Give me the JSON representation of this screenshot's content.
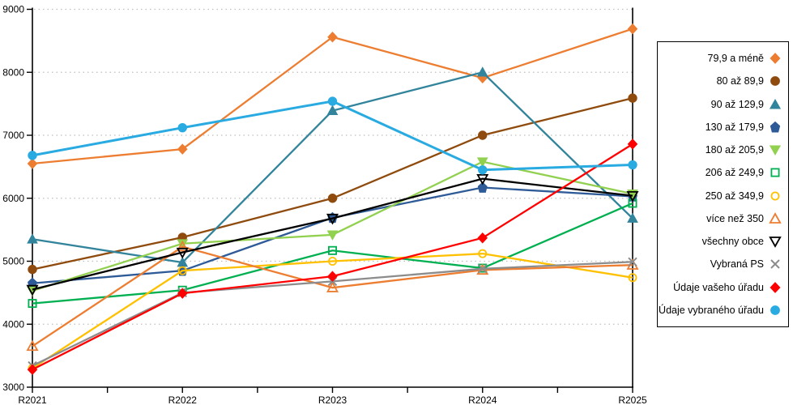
{
  "chart_data": {
    "type": "line",
    "title": "",
    "xlabel": "",
    "ylabel": "",
    "categories": [
      "R2021",
      "R2022",
      "R2023",
      "R2024",
      "R2025"
    ],
    "ylim": [
      3000,
      9000
    ],
    "y_ticks": [
      3000,
      4000,
      5000,
      6000,
      7000,
      8000,
      9000
    ],
    "grid": "horizontal-dashed",
    "legend_position": "right",
    "series": [
      {
        "name": "79,9 a méně",
        "marker": "diamond",
        "fill": "solid",
        "color": "#ED7D31",
        "values": [
          6550,
          6780,
          8560,
          7910,
          8690
        ]
      },
      {
        "name": "80 až 89,9",
        "marker": "circle",
        "fill": "solid",
        "color": "#8F4B0E",
        "values": [
          4870,
          5380,
          6000,
          7000,
          7590
        ]
      },
      {
        "name": "90 až 129,9",
        "marker": "triangle-up",
        "fill": "solid",
        "color": "#31849B",
        "values": [
          5350,
          4980,
          7390,
          8000,
          5680
        ]
      },
      {
        "name": "130 až 179,9",
        "marker": "pentagon",
        "fill": "solid",
        "color": "#2E5B97",
        "values": [
          4650,
          4850,
          5690,
          6170,
          6030
        ]
      },
      {
        "name": "180 až 205,9",
        "marker": "triangle-down",
        "fill": "solid",
        "color": "#92D050",
        "values": [
          4530,
          5280,
          5420,
          6580,
          6070
        ]
      },
      {
        "name": "206 až 249,9",
        "marker": "square",
        "fill": "open",
        "color": "#00B050",
        "values": [
          4330,
          4540,
          5170,
          4890,
          5920
        ]
      },
      {
        "name": "250 až 349,9",
        "marker": "circle",
        "fill": "open",
        "color": "#FFC000",
        "values": [
          3300,
          4850,
          5000,
          5120,
          4740
        ]
      },
      {
        "name": "více než 350",
        "marker": "triangle-up",
        "fill": "open",
        "color": "#ED7D31",
        "values": [
          3650,
          5230,
          4580,
          4860,
          4940
        ]
      },
      {
        "name": "všechny obce",
        "marker": "triangle-down",
        "fill": "open",
        "color": "#000000",
        "values": [
          4550,
          5140,
          5680,
          6310,
          6040
        ]
      },
      {
        "name": "Vybraná PS",
        "marker": "x",
        "fill": "open",
        "color": "#8C8C8C",
        "values": [
          3340,
          4500,
          4680,
          4880,
          4990
        ]
      },
      {
        "name": "Údaje vašeho úřadu",
        "marker": "diamond",
        "fill": "solid",
        "color": "#FF0000",
        "values": [
          3280,
          4490,
          4760,
          5370,
          6860
        ]
      },
      {
        "name": "Údaje vybraného úřadu",
        "marker": "circle",
        "fill": "solid",
        "color": "#29ABE2",
        "values": [
          6680,
          7120,
          7540,
          6450,
          6530
        ]
      }
    ]
  },
  "colors": {
    "background": "#FFFFFF",
    "grid": "#BFBFBF",
    "axis": "#000000",
    "legend_border": "#000000",
    "text": "#000000"
  }
}
